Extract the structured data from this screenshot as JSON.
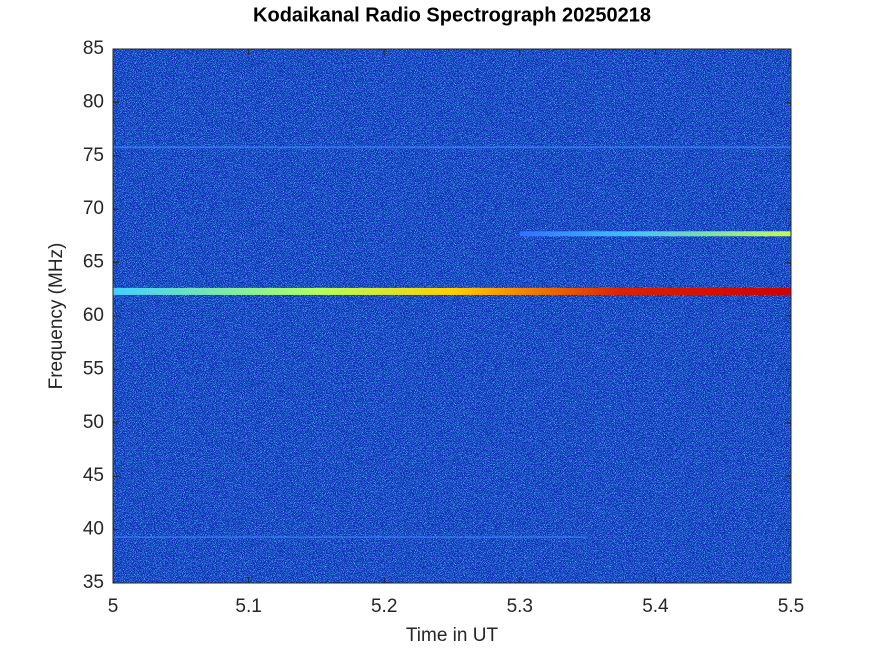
{
  "chart_data": {
    "type": "spectrogram",
    "title": "Kodaikanal Radio Spectrograph  20250218",
    "x_label": "Time in UT",
    "y_label": "Frequency (MHz)",
    "xlim": [
      5,
      5.5
    ],
    "xticks": [
      5,
      5.1,
      5.2,
      5.3,
      5.4,
      5.5
    ],
    "ylim": [
      35,
      85
    ],
    "yticks": [
      35,
      40,
      45,
      50,
      55,
      60,
      65,
      70,
      75,
      80,
      85
    ],
    "emission_bands": [
      {
        "frequency": 62.3,
        "start": 5.0,
        "end": 5.5
      },
      {
        "frequency": 67.7,
        "start": 5.3,
        "end": 5.5
      },
      {
        "frequency": 75.8,
        "start": 5.0,
        "end": 5.5
      },
      {
        "frequency": 39.3,
        "start": 5.0,
        "end": 5.35
      }
    ]
  }
}
